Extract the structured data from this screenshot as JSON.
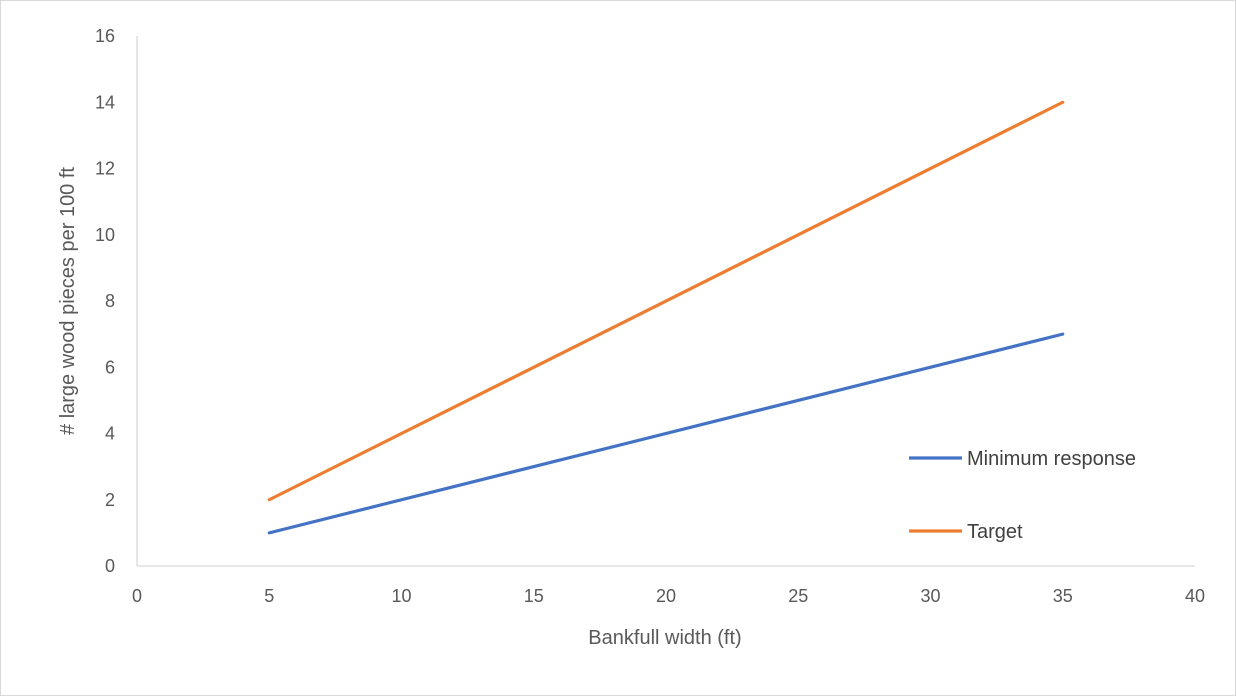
{
  "chart_data": {
    "type": "line",
    "title": "",
    "xlabel": "Bankfull width (ft)",
    "ylabel": "# large wood pieces per 100 ft",
    "xlim": [
      0,
      40
    ],
    "ylim": [
      0,
      16
    ],
    "x_ticks": [
      "0",
      "5",
      "10",
      "15",
      "20",
      "25",
      "30",
      "35",
      "40"
    ],
    "y_ticks": [
      "0",
      "2",
      "4",
      "6",
      "8",
      "10",
      "12",
      "14",
      "16"
    ],
    "grid": false,
    "legend_position": "right",
    "series": [
      {
        "name": "Minimum response",
        "color": "#4472c4",
        "x": [
          5,
          35
        ],
        "y": [
          1,
          7
        ]
      },
      {
        "name": "Target",
        "color": "#ed7d31",
        "x": [
          5,
          35
        ],
        "y": [
          2,
          14
        ]
      }
    ]
  },
  "colors": {
    "axis": "#d9d9d9",
    "text": "#595959"
  }
}
